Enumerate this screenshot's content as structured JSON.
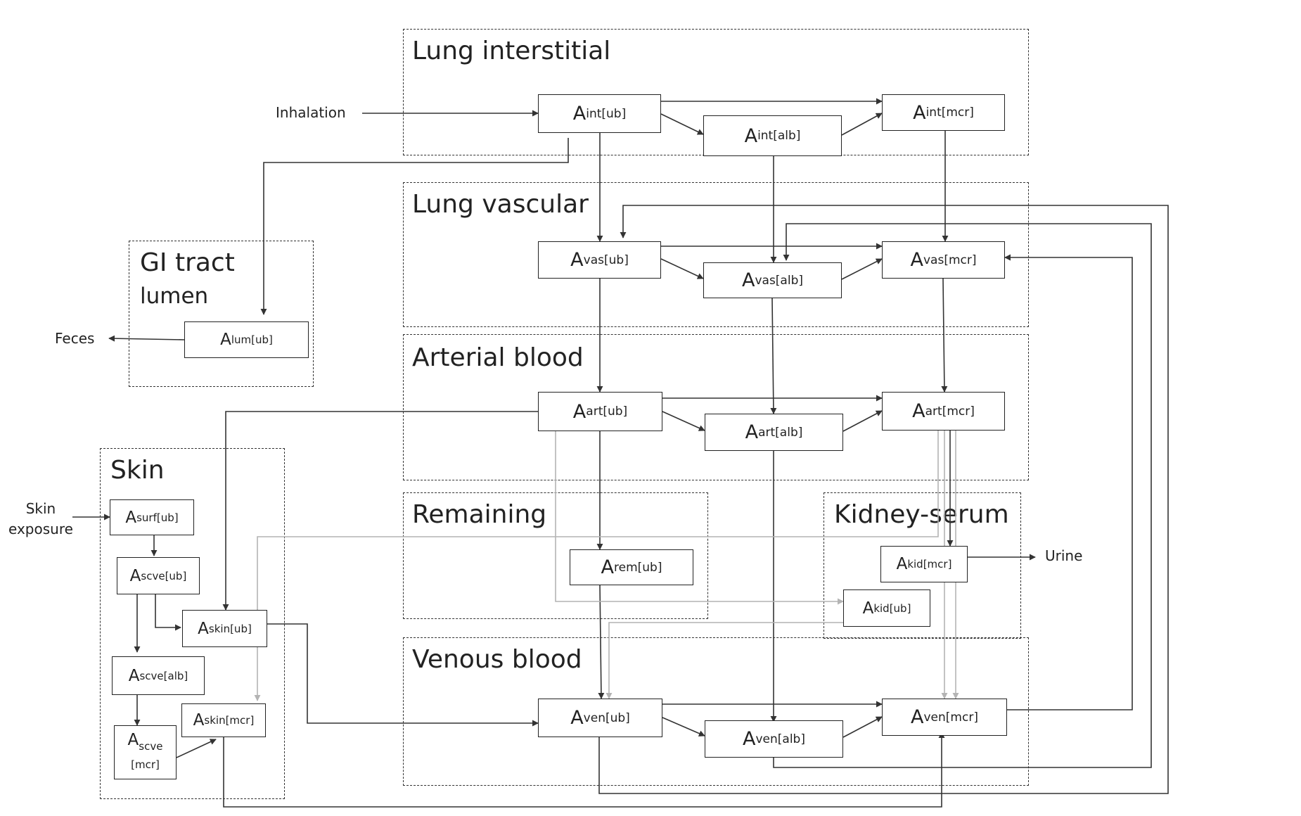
{
  "compartments": {
    "lung_interstitial": "Lung interstitial",
    "lung_vascular": "Lung vascular",
    "gi_tract_line1": "GI tract",
    "gi_tract_line2": "lumen",
    "arterial_blood": "Arterial blood",
    "skin": "Skin",
    "remaining": "Remaining",
    "kidney_serum": "Kidney-serum",
    "venous_blood": "Venous blood"
  },
  "nodes": {
    "int_ub": {
      "sym": "A",
      "sub": "int[ub]"
    },
    "int_alb": {
      "sym": "A",
      "sub": "int[alb]"
    },
    "int_mcr": {
      "sym": "A",
      "sub": "int[mcr]"
    },
    "vas_ub": {
      "sym": "A",
      "sub": "vas[ub]"
    },
    "vas_alb": {
      "sym": "A",
      "sub": "vas[alb]"
    },
    "vas_mcr": {
      "sym": "A",
      "sub": "vas[mcr]"
    },
    "lum_ub": {
      "sym": "A",
      "sub": "lum[ub]"
    },
    "art_ub": {
      "sym": "A",
      "sub": "art[ub]"
    },
    "art_alb": {
      "sym": "A",
      "sub": "art[alb]"
    },
    "art_mcr": {
      "sym": "A",
      "sub": "art[mcr]"
    },
    "surf_ub": {
      "sym": "A",
      "sub": "surf[ub]"
    },
    "scve_ub": {
      "sym": "A",
      "sub": "scve[ub]"
    },
    "skin_ub": {
      "sym": "A",
      "sub": "skin[ub]"
    },
    "scve_alb": {
      "sym": "A",
      "sub": "scve[alb]"
    },
    "skin_mcr": {
      "sym": "A",
      "sub": "skin[mcr]"
    },
    "scve_mcr": {
      "sym": "A",
      "sub": "scve",
      "line2": "[mcr]"
    },
    "rem_ub": {
      "sym": "A",
      "sub": "rem[ub]"
    },
    "kid_mcr": {
      "sym": "A",
      "sub": "kid[mcr]"
    },
    "kid_ub": {
      "sym": "A",
      "sub": "kid[ub]"
    },
    "ven_ub": {
      "sym": "A",
      "sub": "ven[ub]"
    },
    "ven_alb": {
      "sym": "A",
      "sub": "ven[alb]"
    },
    "ven_mcr": {
      "sym": "A",
      "sub": "ven[mcr]"
    }
  },
  "external": {
    "inhalation": "Inhalation",
    "feces": "Feces",
    "skin_exposure_line1": "Skin",
    "skin_exposure_line2": "exposure",
    "urine": "Urine"
  },
  "colors": {
    "line_dark": "#333333",
    "line_gray": "#b4b4b4"
  }
}
